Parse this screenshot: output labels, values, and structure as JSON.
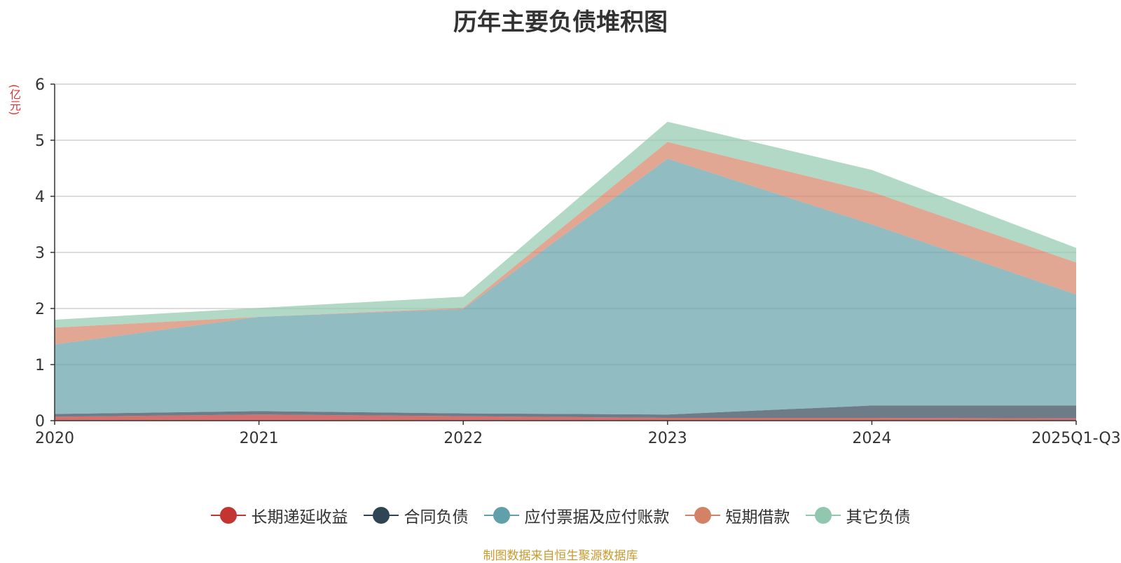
{
  "chart_data": {
    "type": "area",
    "stacked": true,
    "title": "历年主要负债堆积图",
    "unit_label": "(亿元)",
    "categories": [
      "2020",
      "2021",
      "2022",
      "2023",
      "2024",
      "2025Q1-Q3"
    ],
    "ylim": [
      0,
      6
    ],
    "yticks": [
      "0",
      "1",
      "2",
      "3",
      "4",
      "5",
      "6"
    ],
    "grid": true,
    "legend_position": "bottom",
    "series": [
      {
        "name": "长期递延收益",
        "color": "#c23531",
        "values": [
          0.07,
          0.11,
          0.08,
          0.05,
          0.05,
          0.04
        ]
      },
      {
        "name": "合同负债",
        "color": "#2f4554",
        "values": [
          0.05,
          0.06,
          0.05,
          0.06,
          0.22,
          0.23
        ]
      },
      {
        "name": "应付票据及应付账款",
        "color": "#61a0a8",
        "values": [
          1.24,
          1.68,
          1.86,
          4.56,
          3.23,
          1.98
        ]
      },
      {
        "name": "短期借款",
        "color": "#d48265",
        "values": [
          0.3,
          0.0,
          0.02,
          0.3,
          0.58,
          0.57
        ]
      },
      {
        "name": "其它负债",
        "color": "#91c7ae",
        "values": [
          0.14,
          0.16,
          0.2,
          0.36,
          0.39,
          0.26
        ]
      }
    ]
  },
  "footer": {
    "source": "制图数据来自恒生聚源数据库"
  }
}
